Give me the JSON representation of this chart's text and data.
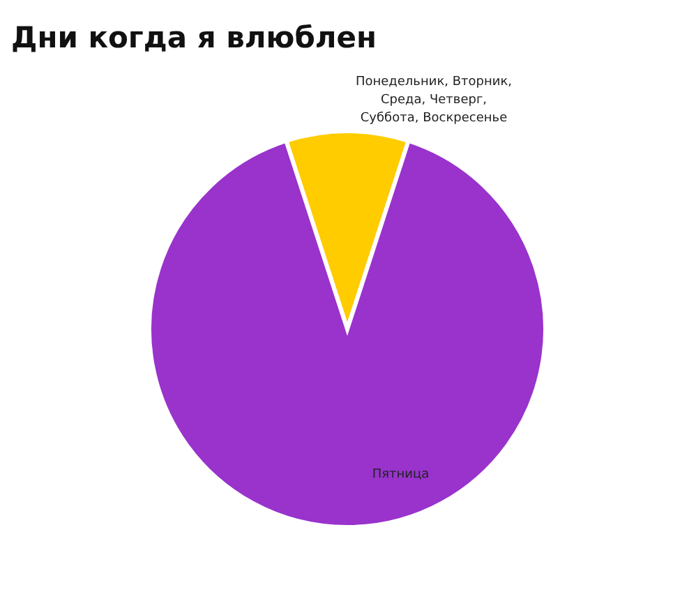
{
  "chart_data": {
    "type": "pie",
    "title": "Дни когда я влюблен",
    "categories": [
      "Понедельник, Вторник, Среда, Четверг, Суббота, Воскресенье",
      "Пятница"
    ],
    "values": [
      10,
      90
    ],
    "colors": [
      "#ffcc00",
      "#9933cc"
    ]
  }
}
